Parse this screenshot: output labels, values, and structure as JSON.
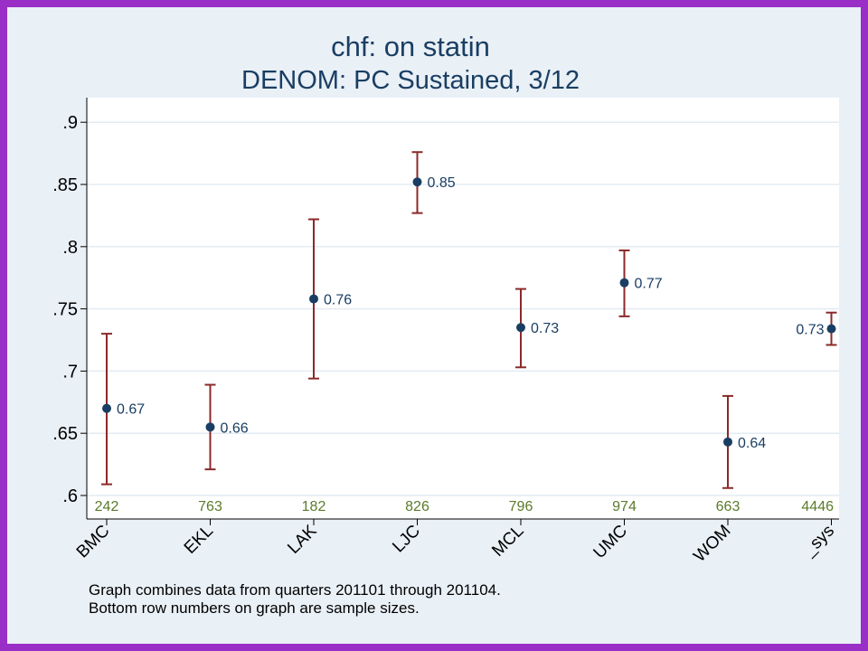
{
  "chart_data": {
    "type": "scatter",
    "title": "chf: on statin",
    "subtitle": "DENOM: PC Sustained, 3/12",
    "categories": [
      "BMC",
      "EKL",
      "LAK",
      "LJC",
      "MCL",
      "UMC",
      "WOM",
      "_sys"
    ],
    "values": [
      0.67,
      0.655,
      0.758,
      0.852,
      0.735,
      0.771,
      0.643,
      0.734
    ],
    "value_labels": [
      "0.67",
      "0.66",
      "0.76",
      "0.85",
      "0.73",
      "0.77",
      "0.64",
      "0.73"
    ],
    "ci_low": [
      0.609,
      0.621,
      0.694,
      0.827,
      0.703,
      0.744,
      0.606,
      0.721
    ],
    "ci_high": [
      0.73,
      0.689,
      0.822,
      0.876,
      0.766,
      0.797,
      0.68,
      0.747
    ],
    "sample_sizes": [
      "242",
      "763",
      "182",
      "826",
      "796",
      "974",
      "663",
      "4446"
    ],
    "yticks": [
      0.6,
      0.65,
      0.7,
      0.75,
      0.8,
      0.85,
      0.9
    ],
    "ytick_labels": [
      ".6",
      ".65",
      ".7",
      ".75",
      ".8",
      ".85",
      ".9"
    ],
    "ylim": [
      0.59,
      0.92
    ],
    "grid": true,
    "colors": {
      "point": "#1a3e63",
      "errorbar": "#8b2a2a",
      "sample_size_text": "#5b7a2a",
      "grid": "#e3ebf2",
      "plot_bg": "#ffffff"
    }
  },
  "notes": [
    "Graph combines data from quarters 201101 through 201104.",
    "Bottom row numbers on graph are sample sizes."
  ]
}
